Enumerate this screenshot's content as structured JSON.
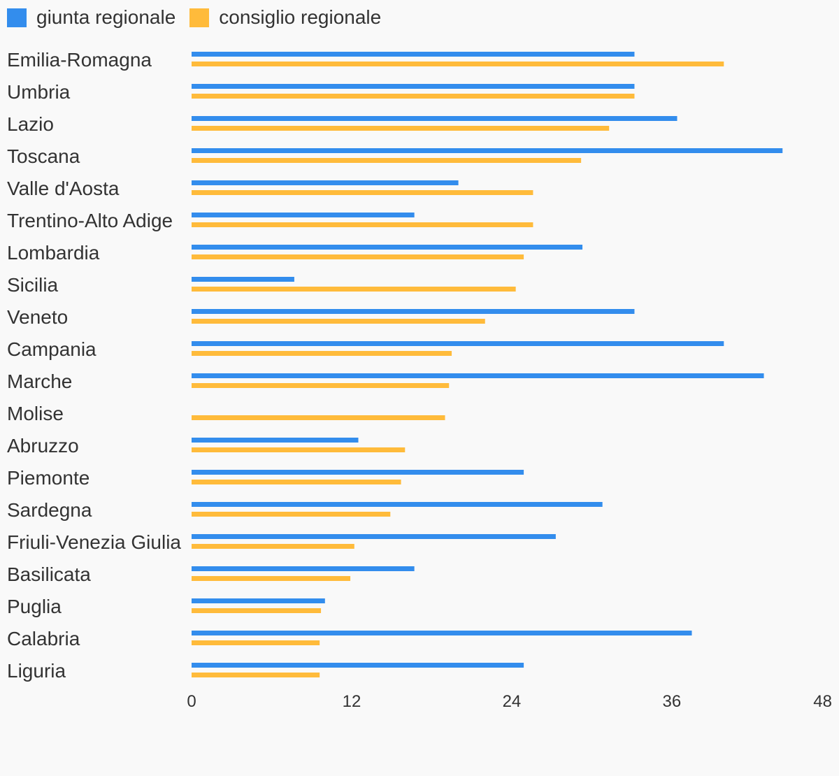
{
  "chart_data": {
    "type": "bar",
    "orientation": "horizontal",
    "title": "",
    "xlabel": "",
    "ylabel": "",
    "xlim": [
      0,
      48
    ],
    "xticks": [
      0,
      12,
      24,
      36,
      48
    ],
    "grid": false,
    "legend_position": "top-left",
    "categories": [
      "Emilia-Romagna",
      "Umbria",
      "Lazio",
      "Toscana",
      "Valle d'Aosta",
      "Trentino-Alto Adige",
      "Lombardia",
      "Sicilia",
      "Veneto",
      "Campania",
      "Marche",
      "Molise",
      "Abruzzo",
      "Piemonte",
      "Sardegna",
      "Friuli-Venezia Giulia",
      "Basilicata",
      "Puglia",
      "Calabria",
      "Liguria"
    ],
    "series": [
      {
        "name": "giunta regionale",
        "color": "#338ded",
        "values": [
          33.2,
          33.2,
          36.4,
          44.3,
          20.0,
          16.7,
          29.3,
          7.7,
          33.2,
          39.9,
          42.9,
          0,
          12.5,
          24.9,
          30.8,
          27.3,
          16.7,
          10.0,
          37.5,
          24.9
        ]
      },
      {
        "name": "consiglio regionale",
        "color": "#ffbb3b",
        "values": [
          39.9,
          33.2,
          31.3,
          29.2,
          25.6,
          25.6,
          24.9,
          24.3,
          22.0,
          19.5,
          19.3,
          19.0,
          16.0,
          15.7,
          14.9,
          12.2,
          11.9,
          9.7,
          9.6,
          9.6
        ]
      }
    ]
  }
}
